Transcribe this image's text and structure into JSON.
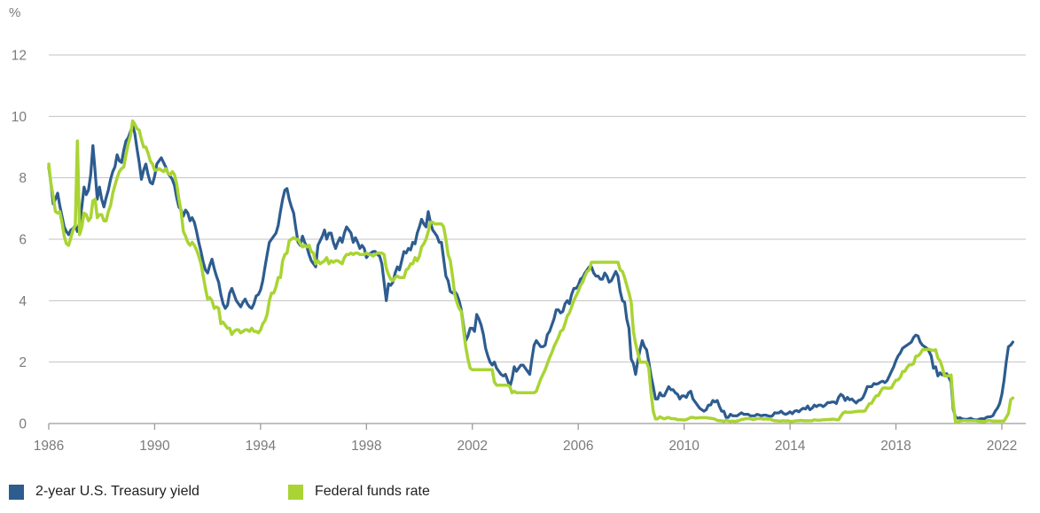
{
  "chart_data": {
    "type": "line",
    "title": "",
    "unit_label": "%",
    "xlabel": "",
    "ylabel": "%",
    "x_ticks": [
      1986,
      1990,
      1994,
      1998,
      2002,
      2006,
      2010,
      2014,
      2018,
      2022
    ],
    "y_ticks": [
      0,
      2,
      4,
      6,
      8,
      10,
      12
    ],
    "xlim": [
      1986,
      2022.95
    ],
    "ylim": [
      0,
      12
    ],
    "x_start": 1986.0,
    "x_step_years": 0.0833333,
    "grid": "horizontal-only",
    "legend_position": "bottom-left",
    "gridline_color": "#c3c3c3",
    "axis_color": "#9a9a9a",
    "tick_label_color": "#7b7b7b",
    "legend_text_color": "#1f1f1f",
    "series": [
      {
        "name": "2-year U.S. Treasury yield",
        "color": "#2d5c8f",
        "stroke_width": 3.2,
        "values": [
          8.35,
          7.8,
          7.15,
          7.3,
          7.5,
          7.1,
          6.75,
          6.4,
          6.25,
          6.15,
          6.3,
          6.35,
          6.45,
          6.25,
          6.55,
          7.05,
          7.7,
          7.45,
          7.6,
          8.1,
          9.05,
          8.2,
          7.3,
          7.7,
          7.3,
          7.05,
          7.35,
          7.6,
          7.95,
          8.2,
          8.35,
          8.75,
          8.55,
          8.5,
          8.9,
          9.2,
          9.3,
          9.5,
          9.7,
          9.45,
          8.95,
          8.5,
          7.95,
          8.25,
          8.45,
          8.1,
          7.85,
          7.8,
          8.05,
          8.45,
          8.55,
          8.65,
          8.5,
          8.35,
          8.15,
          8.05,
          7.95,
          7.75,
          7.35,
          7.05,
          6.95,
          6.75,
          6.95,
          6.85,
          6.6,
          6.7,
          6.55,
          6.25,
          5.9,
          5.6,
          5.25,
          5.0,
          4.9,
          5.15,
          5.35,
          5.05,
          4.8,
          4.6,
          4.2,
          3.9,
          3.75,
          3.85,
          4.25,
          4.4,
          4.2,
          4.0,
          3.9,
          3.8,
          3.95,
          4.05,
          3.9,
          3.8,
          3.75,
          3.9,
          4.15,
          4.2,
          4.35,
          4.65,
          5.1,
          5.5,
          5.9,
          6.0,
          6.1,
          6.2,
          6.45,
          6.9,
          7.3,
          7.6,
          7.65,
          7.3,
          7.05,
          6.85,
          6.35,
          5.9,
          5.8,
          6.1,
          5.9,
          5.75,
          5.5,
          5.3,
          5.2,
          5.1,
          5.8,
          5.95,
          6.1,
          6.3,
          6.0,
          6.2,
          6.2,
          5.9,
          5.7,
          5.9,
          6.05,
          5.9,
          6.2,
          6.4,
          6.3,
          6.2,
          5.9,
          6.05,
          5.9,
          5.7,
          5.8,
          5.7,
          5.4,
          5.5,
          5.55,
          5.6,
          5.6,
          5.5,
          5.45,
          5.2,
          4.6,
          4.0,
          4.55,
          4.5,
          4.6,
          4.9,
          5.1,
          5.0,
          5.3,
          5.6,
          5.55,
          5.7,
          5.65,
          5.9,
          5.85,
          6.2,
          6.4,
          6.65,
          6.5,
          6.4,
          6.9,
          6.55,
          6.3,
          6.2,
          6.1,
          5.9,
          5.9,
          5.35,
          4.8,
          4.65,
          4.3,
          4.25,
          4.3,
          4.2,
          4.0,
          3.7,
          3.2,
          2.7,
          2.85,
          3.1,
          3.1,
          3.0,
          3.55,
          3.4,
          3.2,
          2.9,
          2.45,
          2.2,
          2.0,
          1.9,
          2.0,
          1.8,
          1.7,
          1.6,
          1.55,
          1.6,
          1.4,
          1.2,
          1.45,
          1.85,
          1.7,
          1.8,
          1.9,
          1.9,
          1.8,
          1.7,
          1.6,
          2.1,
          2.55,
          2.7,
          2.6,
          2.5,
          2.5,
          2.55,
          2.9,
          3.0,
          3.2,
          3.4,
          3.7,
          3.7,
          3.6,
          3.65,
          3.9,
          4.0,
          3.9,
          4.2,
          4.4,
          4.4,
          4.5,
          4.7,
          4.75,
          4.9,
          5.0,
          5.1,
          5.1,
          4.9,
          4.8,
          4.8,
          4.7,
          4.7,
          4.9,
          4.8,
          4.6,
          4.65,
          4.8,
          4.95,
          4.8,
          4.3,
          4.0,
          3.95,
          3.4,
          3.1,
          2.1,
          1.95,
          1.6,
          2.05,
          2.4,
          2.7,
          2.5,
          2.4,
          2.0,
          1.55,
          1.2,
          0.8,
          0.8,
          1.0,
          0.9,
          0.9,
          1.05,
          1.2,
          1.1,
          1.1,
          1.0,
          0.95,
          0.8,
          0.9,
          0.9,
          0.85,
          1.0,
          1.05,
          0.8,
          0.7,
          0.6,
          0.5,
          0.45,
          0.4,
          0.45,
          0.6,
          0.6,
          0.75,
          0.7,
          0.75,
          0.55,
          0.4,
          0.4,
          0.2,
          0.2,
          0.3,
          0.25,
          0.25,
          0.25,
          0.3,
          0.35,
          0.3,
          0.3,
          0.3,
          0.25,
          0.25,
          0.25,
          0.3,
          0.28,
          0.25,
          0.27,
          0.27,
          0.25,
          0.23,
          0.25,
          0.35,
          0.34,
          0.35,
          0.4,
          0.33,
          0.3,
          0.33,
          0.38,
          0.32,
          0.4,
          0.42,
          0.38,
          0.45,
          0.5,
          0.47,
          0.57,
          0.45,
          0.5,
          0.6,
          0.55,
          0.6,
          0.6,
          0.55,
          0.6,
          0.68,
          0.68,
          0.7,
          0.7,
          0.65,
          0.85,
          0.95,
          0.9,
          0.75,
          0.85,
          0.77,
          0.8,
          0.73,
          0.67,
          0.75,
          0.77,
          0.84,
          1.0,
          1.2,
          1.2,
          1.2,
          1.3,
          1.28,
          1.3,
          1.35,
          1.38,
          1.33,
          1.4,
          1.55,
          1.7,
          1.85,
          2.05,
          2.2,
          2.3,
          2.45,
          2.5,
          2.55,
          2.6,
          2.65,
          2.8,
          2.88,
          2.85,
          2.65,
          2.55,
          2.5,
          2.45,
          2.35,
          2.2,
          1.8,
          1.85,
          1.55,
          1.65,
          1.58,
          1.6,
          1.62,
          1.5,
          1.35,
          0.45,
          0.22,
          0.17,
          0.19,
          0.15,
          0.14,
          0.13,
          0.15,
          0.17,
          0.13,
          0.12,
          0.12,
          0.15,
          0.16,
          0.15,
          0.2,
          0.22,
          0.22,
          0.26,
          0.4,
          0.5,
          0.65,
          0.95,
          1.4,
          2.0,
          2.5,
          2.55,
          2.65
        ]
      },
      {
        "name": "Federal funds rate",
        "color": "#a9d434",
        "stroke_width": 3.5,
        "values": [
          8.45,
          7.8,
          7.4,
          6.9,
          6.85,
          6.9,
          6.55,
          6.1,
          5.85,
          5.8,
          6.05,
          6.3,
          6.45,
          9.2,
          6.15,
          6.4,
          6.85,
          6.8,
          6.6,
          6.7,
          7.25,
          7.3,
          6.7,
          6.8,
          6.8,
          6.6,
          6.6,
          6.9,
          7.1,
          7.5,
          7.75,
          8.0,
          8.2,
          8.3,
          8.35,
          8.75,
          9.1,
          9.35,
          9.85,
          9.75,
          9.6,
          9.55,
          9.25,
          9.0,
          9.0,
          8.8,
          8.55,
          8.45,
          8.25,
          8.25,
          8.3,
          8.25,
          8.2,
          8.3,
          8.15,
          8.1,
          8.2,
          8.1,
          7.8,
          7.3,
          6.9,
          6.25,
          6.1,
          5.9,
          5.8,
          5.9,
          5.8,
          5.65,
          5.45,
          5.2,
          4.8,
          4.4,
          4.05,
          4.1,
          4.0,
          3.75,
          3.8,
          3.75,
          3.25,
          3.3,
          3.2,
          3.1,
          3.1,
          2.9,
          3.0,
          3.05,
          3.05,
          2.95,
          3.0,
          3.05,
          3.05,
          3.0,
          3.1,
          3.0,
          3.0,
          2.95,
          3.05,
          3.25,
          3.35,
          3.55,
          4.0,
          4.25,
          4.25,
          4.45,
          4.75,
          4.75,
          5.3,
          5.5,
          5.55,
          5.95,
          6.0,
          6.05,
          6.0,
          6.0,
          5.85,
          5.75,
          5.8,
          5.75,
          5.8,
          5.6,
          5.55,
          5.2,
          5.3,
          5.2,
          5.25,
          5.3,
          5.4,
          5.2,
          5.3,
          5.25,
          5.3,
          5.3,
          5.25,
          5.2,
          5.4,
          5.5,
          5.5,
          5.55,
          5.5,
          5.55,
          5.55,
          5.5,
          5.5,
          5.5,
          5.55,
          5.5,
          5.5,
          5.45,
          5.5,
          5.55,
          5.55,
          5.55,
          5.5,
          5.05,
          4.85,
          4.7,
          4.65,
          4.75,
          4.8,
          4.75,
          4.75,
          4.75,
          5.0,
          5.05,
          5.2,
          5.2,
          5.4,
          5.3,
          5.45,
          5.75,
          5.85,
          6.0,
          6.25,
          6.55,
          6.55,
          6.5,
          6.5,
          6.5,
          6.5,
          6.4,
          6.0,
          5.5,
          5.3,
          4.8,
          4.2,
          3.95,
          3.75,
          3.65,
          3.05,
          2.5,
          2.1,
          1.8,
          1.75,
          1.75,
          1.75,
          1.75,
          1.75,
          1.75,
          1.75,
          1.75,
          1.75,
          1.75,
          1.35,
          1.25,
          1.25,
          1.25,
          1.25,
          1.25,
          1.25,
          1.2,
          1.0,
          1.05,
          1.0,
          1.0,
          1.0,
          1.0,
          1.0,
          1.0,
          1.0,
          1.0,
          1.0,
          1.05,
          1.25,
          1.45,
          1.6,
          1.75,
          1.95,
          2.15,
          2.3,
          2.5,
          2.65,
          2.8,
          3.0,
          3.05,
          3.25,
          3.5,
          3.6,
          3.8,
          4.0,
          4.15,
          4.3,
          4.5,
          4.6,
          4.8,
          4.95,
          5.0,
          5.25,
          5.25,
          5.25,
          5.25,
          5.25,
          5.25,
          5.25,
          5.25,
          5.25,
          5.25,
          5.25,
          5.25,
          5.25,
          5.0,
          4.95,
          4.75,
          4.5,
          4.25,
          3.95,
          3.0,
          2.6,
          2.3,
          2.0,
          2.0,
          2.0,
          2.0,
          1.8,
          1.0,
          0.4,
          0.15,
          0.15,
          0.22,
          0.18,
          0.15,
          0.18,
          0.2,
          0.16,
          0.16,
          0.15,
          0.12,
          0.12,
          0.12,
          0.11,
          0.13,
          0.16,
          0.2,
          0.2,
          0.18,
          0.18,
          0.19,
          0.19,
          0.19,
          0.19,
          0.18,
          0.17,
          0.16,
          0.14,
          0.1,
          0.09,
          0.09,
          0.07,
          0.1,
          0.08,
          0.07,
          0.08,
          0.07,
          0.08,
          0.1,
          0.13,
          0.14,
          0.16,
          0.16,
          0.16,
          0.13,
          0.14,
          0.16,
          0.16,
          0.16,
          0.14,
          0.15,
          0.14,
          0.15,
          0.11,
          0.09,
          0.09,
          0.08,
          0.08,
          0.09,
          0.08,
          0.09,
          0.07,
          0.07,
          0.08,
          0.09,
          0.09,
          0.1,
          0.09,
          0.09,
          0.09,
          0.09,
          0.09,
          0.12,
          0.11,
          0.11,
          0.11,
          0.12,
          0.12,
          0.13,
          0.13,
          0.14,
          0.14,
          0.12,
          0.12,
          0.24,
          0.34,
          0.38,
          0.36,
          0.37,
          0.37,
          0.38,
          0.39,
          0.4,
          0.4,
          0.4,
          0.41,
          0.54,
          0.65,
          0.66,
          0.79,
          0.9,
          0.91,
          1.04,
          1.15,
          1.16,
          1.15,
          1.15,
          1.16,
          1.3,
          1.41,
          1.42,
          1.51,
          1.69,
          1.7,
          1.82,
          1.91,
          1.91,
          1.95,
          2.19,
          2.2,
          2.27,
          2.4,
          2.4,
          2.41,
          2.42,
          2.39,
          2.38,
          2.4,
          2.13,
          2.04,
          1.83,
          1.55,
          1.55,
          1.55,
          1.58,
          0.65,
          0.05,
          0.05,
          0.08,
          0.09,
          0.1,
          0.09,
          0.09,
          0.09,
          0.09,
          0.09,
          0.08,
          0.07,
          0.07,
          0.06,
          0.08,
          0.1,
          0.09,
          0.08,
          0.08,
          0.08,
          0.08,
          0.08,
          0.08,
          0.2,
          0.33,
          0.77,
          0.83
        ]
      }
    ]
  }
}
